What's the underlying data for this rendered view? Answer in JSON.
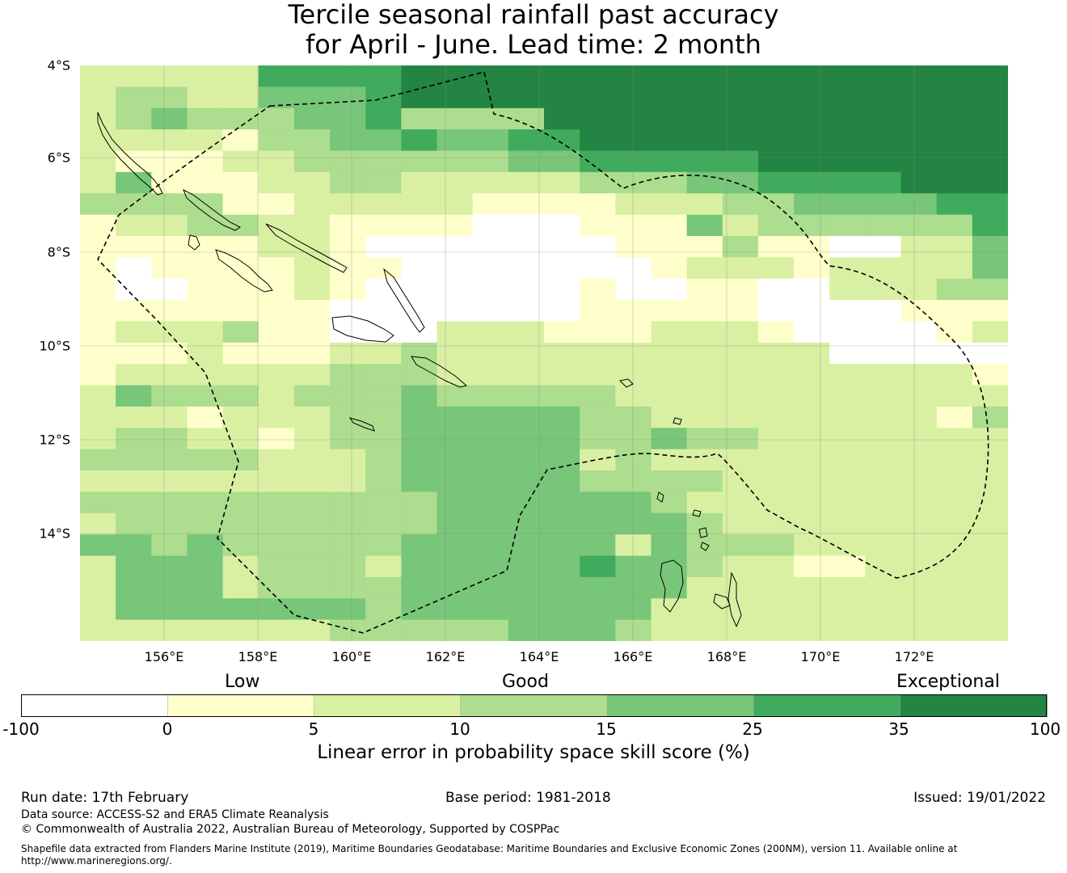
{
  "title": {
    "line1": "Tercile seasonal rainfall past accuracy",
    "line2": "for April - June. Lead time: 2 month"
  },
  "map": {
    "lat_labels": [
      "4°S",
      "6°S",
      "8°S",
      "10°S",
      "12°S",
      "14°S"
    ],
    "lon_labels": [
      "156°E",
      "158°E",
      "160°E",
      "162°E",
      "164°E",
      "166°E",
      "168°E",
      "170°E",
      "172°E"
    ],
    "palette": [
      "#ffffff",
      "#ffffcc",
      "#d9f0a3",
      "#addd8e",
      "#78c679",
      "#41ab5d",
      "#238443"
    ],
    "grid": [
      "22222555566666666666666666",
      "23322444566666666666666666",
      "23433344533336666666666666",
      "22221334454455666666666666",
      "21112233333344555556666666",
      "24111223322222333445555666",
      "33331122222111122233444455",
      "12233221111000111423333335",
      "11111221000000011131100224",
      "10111121100000001222122224",
      "10011121000000100110022233",
      "11111110000000111110000111",
      "12223110002221112221000012",
      "11121112232222222222200000",
      "12222223332222222222222221",
      "24333233343333322222222222",
      "22212223344444332222222213",
      "23322123344444334332222222",
      "33333222344444232222222222",
      "22222222344444333322222222",
      "33333333334444443222222222",
      "23333333334444444322222222",
      "44343333344444424333222222",
      "24442333244444544322112222",
      "24442333344444444222222222",
      "24444444344444442222222222",
      "22222223333344432222222222"
    ]
  },
  "colorbar": {
    "words": {
      "low": "Low",
      "good": "Good",
      "exceptional": "Exceptional"
    },
    "ticks": [
      "-100",
      "0",
      "5",
      "10",
      "15",
      "25",
      "35",
      "100"
    ],
    "label": "Linear error in probability space skill score (%)"
  },
  "footer": {
    "run_date": "Run date: 17th February",
    "base_period": "Base period: 1981-2018",
    "issued": "Issued: 19/01/2022",
    "data_source": "Data source: ACCESS-S2 and ERA5 Climate Reanalysis",
    "copyright": "© Commonwealth of Australia 2022, Australian Bureau of Meteorology, Supported by COSPPac",
    "shapefile_line1": "Shapefile data extracted from Flanders Marine Institute (2019), Maritime Boundaries Geodatabase: Maritime Boundaries and Exclusive Economic Zones (200NM), version 11. Available online at",
    "shapefile_line2": "http://www.marineregions.org/."
  }
}
